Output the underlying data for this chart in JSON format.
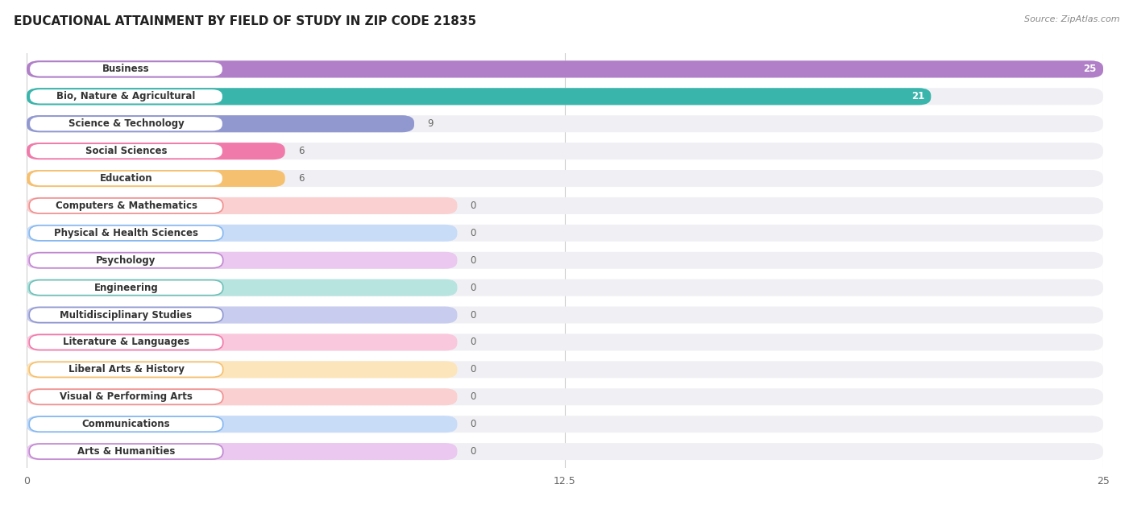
{
  "title": "EDUCATIONAL ATTAINMENT BY FIELD OF STUDY IN ZIP CODE 21835",
  "source": "Source: ZipAtlas.com",
  "categories": [
    "Business",
    "Bio, Nature & Agricultural",
    "Science & Technology",
    "Social Sciences",
    "Education",
    "Computers & Mathematics",
    "Physical & Health Sciences",
    "Psychology",
    "Engineering",
    "Multidisciplinary Studies",
    "Literature & Languages",
    "Liberal Arts & History",
    "Visual & Performing Arts",
    "Communications",
    "Arts & Humanities"
  ],
  "values": [
    25,
    21,
    9,
    6,
    6,
    0,
    0,
    0,
    0,
    0,
    0,
    0,
    0,
    0,
    0
  ],
  "bar_colors": [
    "#b07fc7",
    "#3ab5ac",
    "#9198d0",
    "#f07aaa",
    "#f5c070",
    "#f09090",
    "#85b8f0",
    "#c088d0",
    "#70c0b8",
    "#9198d0",
    "#f07aaa",
    "#f5c070",
    "#f09090",
    "#85b8f0",
    "#c088d0"
  ],
  "bar_bg_colors": [
    "#dbc8ec",
    "#a8ddd9",
    "#c8ccee",
    "#fac8dc",
    "#fde5bb",
    "#fad0d0",
    "#c8dcf8",
    "#eac8f0",
    "#b8e4e0",
    "#c8ccee",
    "#fac8dc",
    "#fde5bb",
    "#fad0d0",
    "#c8dcf8",
    "#eac8f0"
  ],
  "row_bg_color": "#f0f0f4",
  "background_color": "#ffffff",
  "xlim": [
    0,
    25
  ],
  "xticks": [
    0,
    12.5,
    25
  ],
  "title_fontsize": 11,
  "label_fontsize": 8.5,
  "value_fontsize": 8.5,
  "source_fontsize": 8
}
